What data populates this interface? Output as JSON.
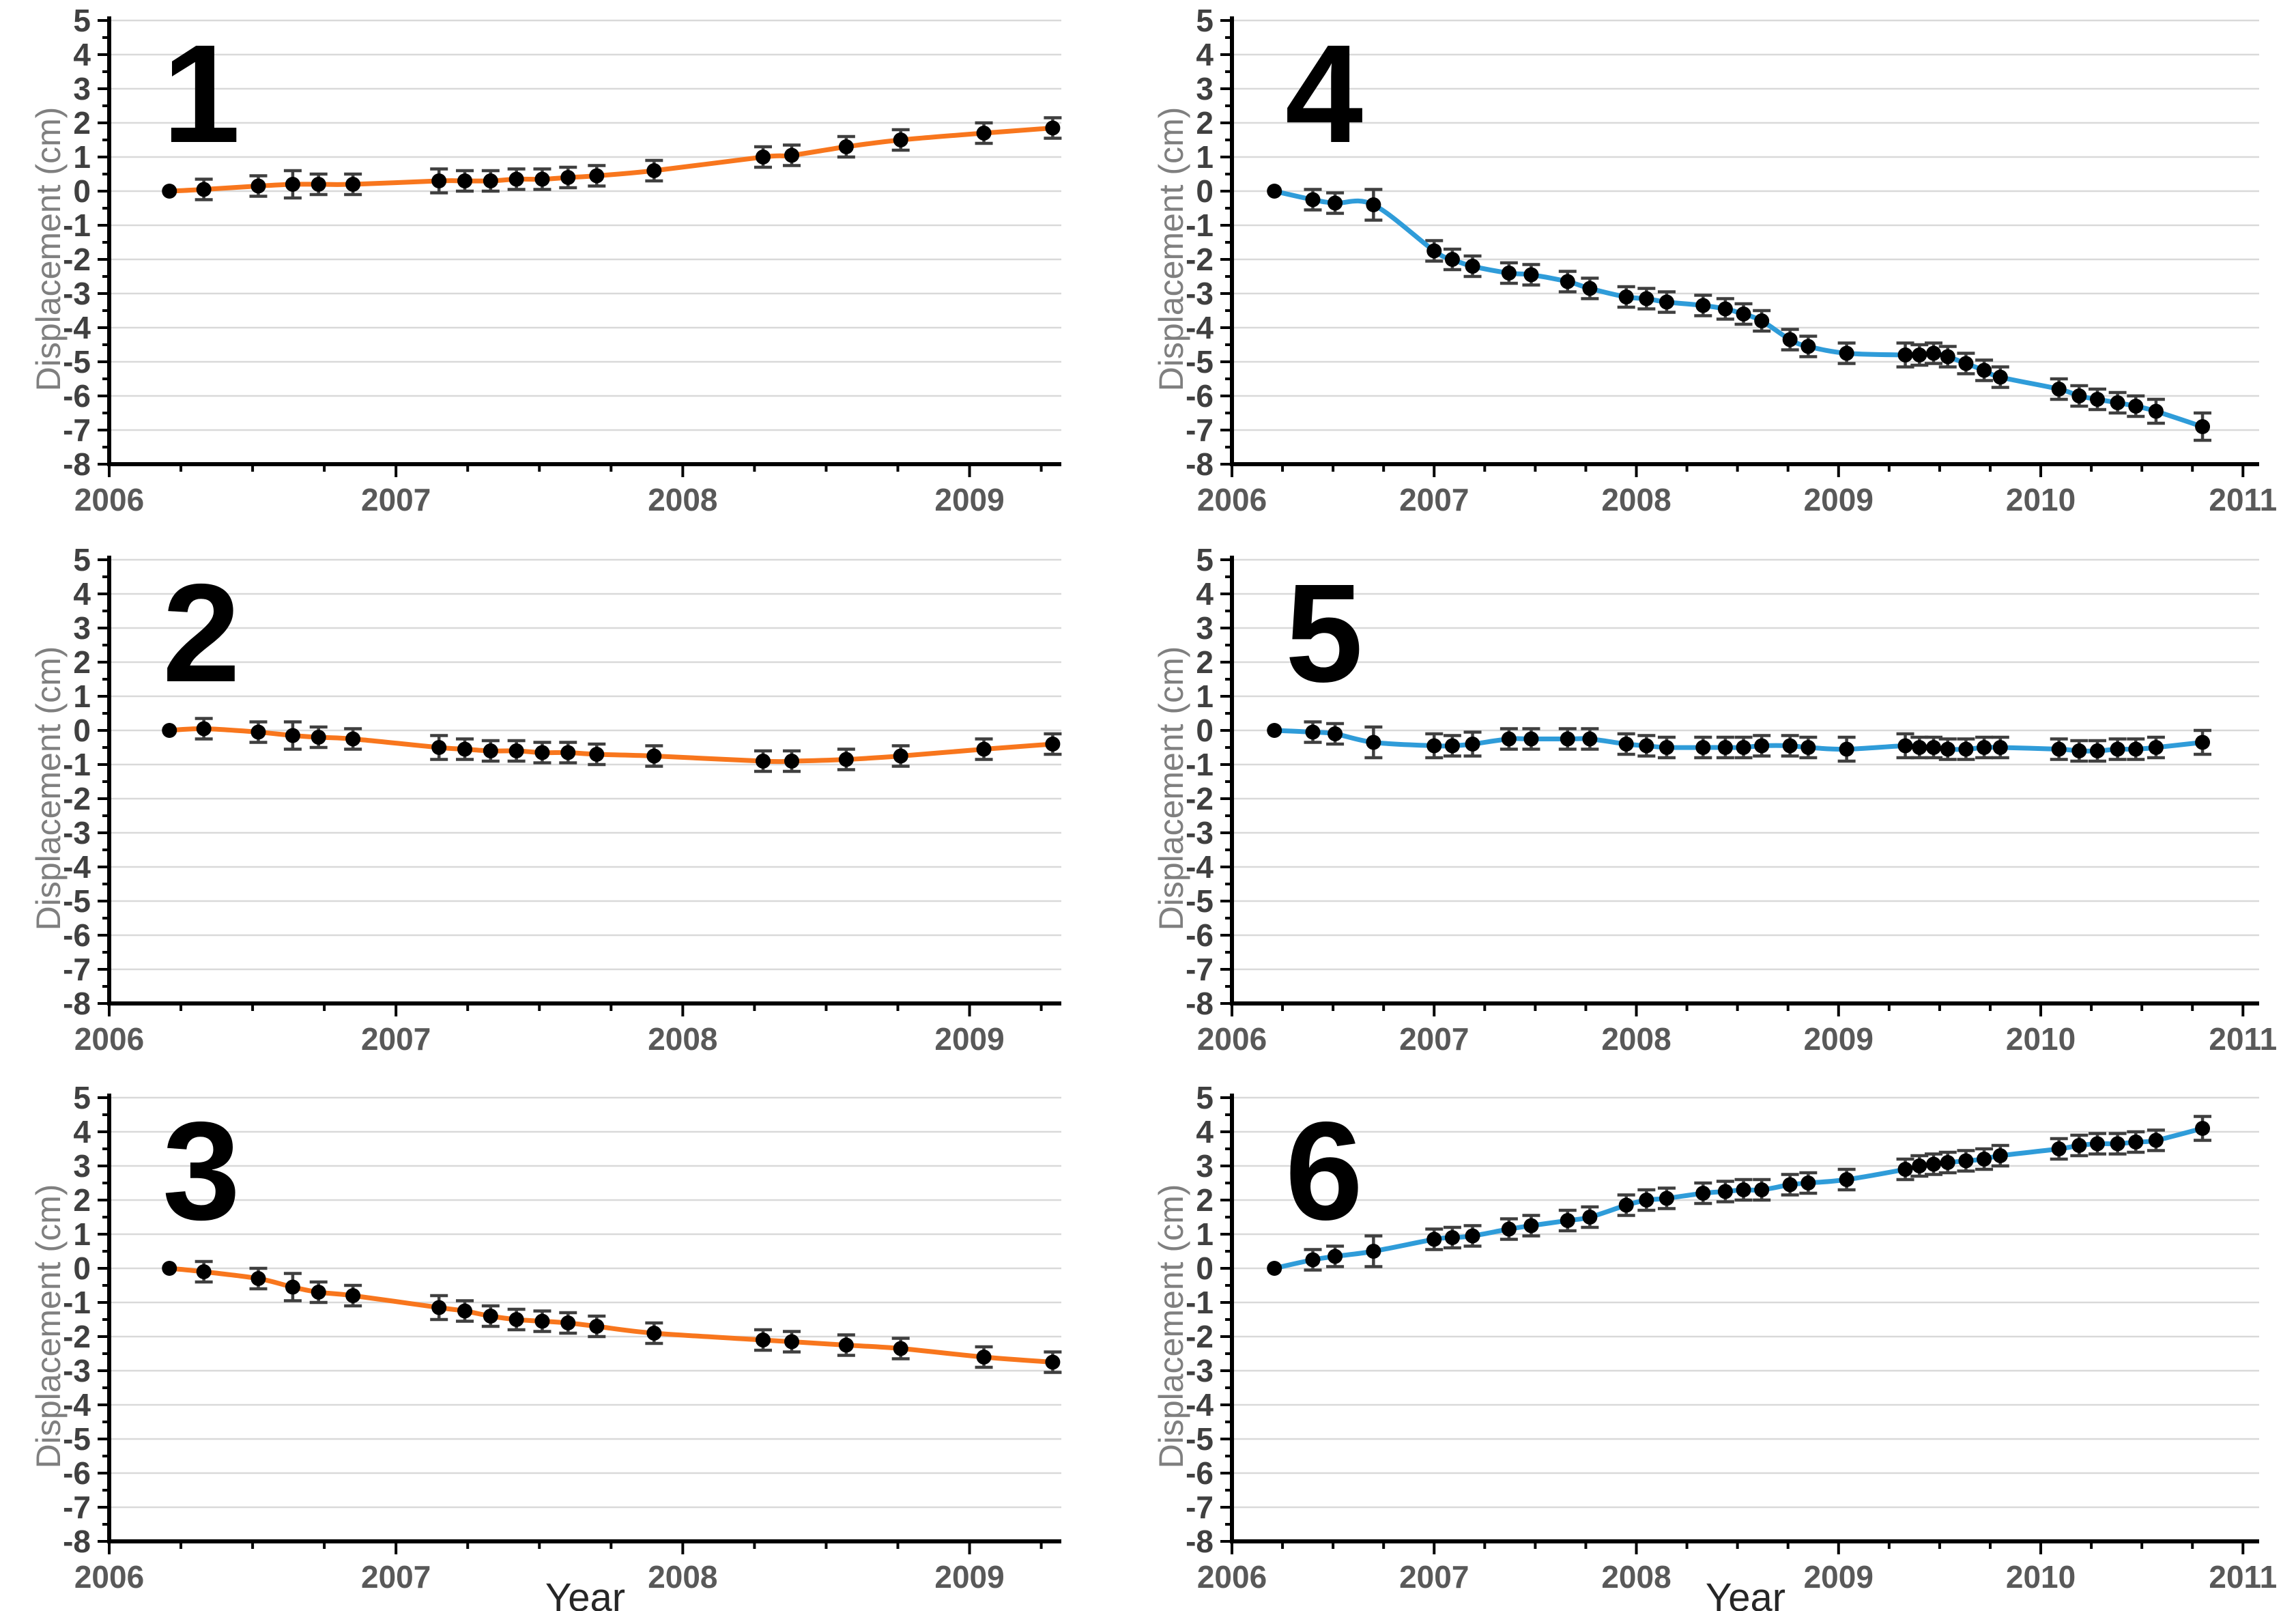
{
  "figure": {
    "xlabel": "Year",
    "ylabel": "Displacement (cm)",
    "y_ticks": [
      5,
      4,
      3,
      2,
      1,
      0,
      -1,
      -2,
      -3,
      -4,
      -5,
      -6,
      -7,
      -8
    ],
    "colors": {
      "orange_series": "#F8761D",
      "blue_series": "#2F9CD9",
      "marker": "#000000",
      "error_bar": "#3F3F3F",
      "gridline": "#D9D9D9",
      "axis": "#000000",
      "tick_label": "#404040",
      "year_label": "#595959",
      "axis_title": "#7F7F7F",
      "xlabel_color": "#262626"
    }
  },
  "chart_data": [
    {
      "number": "1",
      "type": "line",
      "column": "left",
      "series_color": "#F8761D",
      "title": "1",
      "ylabel": "Displacement (cm)",
      "show_xlabel": false,
      "ylim": [
        -8,
        5
      ],
      "xlim": [
        2006,
        2009.32
      ],
      "x_ticks": [
        2006,
        2007,
        2008,
        2009
      ],
      "x": [
        2006.21,
        2006.33,
        2006.52,
        2006.64,
        2006.73,
        2006.85,
        2007.15,
        2007.24,
        2007.33,
        2007.42,
        2007.51,
        2007.6,
        2007.7,
        2007.9,
        2008.28,
        2008.38,
        2008.57,
        2008.76,
        2009.05,
        2009.29
      ],
      "y": [
        0,
        0.05,
        0.15,
        0.2,
        0.2,
        0.2,
        0.3,
        0.3,
        0.3,
        0.35,
        0.35,
        0.4,
        0.45,
        0.6,
        1.0,
        1.05,
        1.3,
        1.5,
        1.7,
        1.85
      ],
      "err": [
        0,
        0.3,
        0.3,
        0.4,
        0.3,
        0.3,
        0.35,
        0.3,
        0.3,
        0.3,
        0.3,
        0.3,
        0.3,
        0.3,
        0.3,
        0.3,
        0.3,
        0.3,
        0.3,
        0.3
      ]
    },
    {
      "number": "2",
      "type": "line",
      "column": "left",
      "series_color": "#F8761D",
      "title": "2",
      "ylabel": "Displacement (cm)",
      "show_xlabel": false,
      "ylim": [
        -8,
        5
      ],
      "xlim": [
        2006,
        2009.32
      ],
      "x_ticks": [
        2006,
        2007,
        2008,
        2009
      ],
      "x": [
        2006.21,
        2006.33,
        2006.52,
        2006.64,
        2006.73,
        2006.85,
        2007.15,
        2007.24,
        2007.33,
        2007.42,
        2007.51,
        2007.6,
        2007.7,
        2007.9,
        2008.28,
        2008.38,
        2008.57,
        2008.76,
        2009.05,
        2009.29
      ],
      "y": [
        0,
        0.05,
        -0.05,
        -0.15,
        -0.2,
        -0.25,
        -0.5,
        -0.55,
        -0.6,
        -0.6,
        -0.65,
        -0.65,
        -0.7,
        -0.75,
        -0.9,
        -0.9,
        -0.85,
        -0.75,
        -0.55,
        -0.4
      ],
      "err": [
        0,
        0.3,
        0.3,
        0.4,
        0.3,
        0.3,
        0.35,
        0.3,
        0.3,
        0.3,
        0.3,
        0.3,
        0.3,
        0.3,
        0.3,
        0.3,
        0.3,
        0.3,
        0.3,
        0.3
      ]
    },
    {
      "number": "3",
      "type": "line",
      "column": "left",
      "series_color": "#F8761D",
      "title": "3",
      "ylabel": "Displacement (cm)",
      "show_xlabel": true,
      "ylim": [
        -8,
        5
      ],
      "xlim": [
        2006,
        2009.32
      ],
      "x_ticks": [
        2006,
        2007,
        2008,
        2009
      ],
      "x": [
        2006.21,
        2006.33,
        2006.52,
        2006.64,
        2006.73,
        2006.85,
        2007.15,
        2007.24,
        2007.33,
        2007.42,
        2007.51,
        2007.6,
        2007.7,
        2007.9,
        2008.28,
        2008.38,
        2008.57,
        2008.76,
        2009.05,
        2009.29
      ],
      "y": [
        0,
        -0.1,
        -0.3,
        -0.55,
        -0.7,
        -0.8,
        -1.15,
        -1.25,
        -1.4,
        -1.5,
        -1.55,
        -1.6,
        -1.7,
        -1.9,
        -2.1,
        -2.15,
        -2.25,
        -2.35,
        -2.6,
        -2.75
      ],
      "err": [
        0,
        0.3,
        0.3,
        0.4,
        0.3,
        0.3,
        0.35,
        0.3,
        0.3,
        0.3,
        0.3,
        0.3,
        0.3,
        0.3,
        0.3,
        0.3,
        0.3,
        0.3,
        0.3,
        0.3
      ]
    },
    {
      "number": "4",
      "type": "line",
      "column": "right",
      "series_color": "#2F9CD9",
      "title": "4",
      "ylabel": "Displacement (cm)",
      "show_xlabel": false,
      "ylim": [
        -8,
        5
      ],
      "xlim": [
        2006,
        2011.08
      ],
      "x_ticks": [
        2006,
        2007,
        2008,
        2009,
        2010,
        2011
      ],
      "x": [
        2006.21,
        2006.4,
        2006.51,
        2006.7,
        2007.0,
        2007.09,
        2007.19,
        2007.37,
        2007.48,
        2007.66,
        2007.77,
        2007.95,
        2008.05,
        2008.15,
        2008.33,
        2008.44,
        2008.53,
        2008.62,
        2008.76,
        2008.85,
        2009.04,
        2009.33,
        2009.4,
        2009.47,
        2009.54,
        2009.63,
        2009.72,
        2009.8,
        2010.09,
        2010.19,
        2010.28,
        2010.38,
        2010.47,
        2010.57,
        2010.8
      ],
      "y": [
        0,
        -0.25,
        -0.35,
        -0.4,
        -1.75,
        -2.0,
        -2.2,
        -2.4,
        -2.45,
        -2.65,
        -2.85,
        -3.1,
        -3.15,
        -3.25,
        -3.35,
        -3.45,
        -3.6,
        -3.8,
        -4.35,
        -4.55,
        -4.75,
        -4.8,
        -4.8,
        -4.75,
        -4.85,
        -5.05,
        -5.25,
        -5.45,
        -5.8,
        -6.0,
        -6.1,
        -6.2,
        -6.3,
        -6.45,
        -6.9
      ],
      "err": [
        0,
        0.3,
        0.3,
        0.45,
        0.3,
        0.3,
        0.3,
        0.3,
        0.3,
        0.3,
        0.3,
        0.3,
        0.3,
        0.3,
        0.3,
        0.3,
        0.3,
        0.3,
        0.3,
        0.3,
        0.3,
        0.35,
        0.3,
        0.3,
        0.3,
        0.3,
        0.3,
        0.3,
        0.3,
        0.3,
        0.3,
        0.3,
        0.3,
        0.35,
        0.4
      ]
    },
    {
      "number": "5",
      "type": "line",
      "column": "right",
      "series_color": "#2F9CD9",
      "title": "5",
      "ylabel": "Displacement (cm)",
      "show_xlabel": false,
      "ylim": [
        -8,
        5
      ],
      "xlim": [
        2006,
        2011.08
      ],
      "x_ticks": [
        2006,
        2007,
        2008,
        2009,
        2010,
        2011
      ],
      "x": [
        2006.21,
        2006.4,
        2006.51,
        2006.7,
        2007.0,
        2007.09,
        2007.19,
        2007.37,
        2007.48,
        2007.66,
        2007.77,
        2007.95,
        2008.05,
        2008.15,
        2008.33,
        2008.44,
        2008.53,
        2008.62,
        2008.76,
        2008.85,
        2009.04,
        2009.33,
        2009.4,
        2009.47,
        2009.54,
        2009.63,
        2009.72,
        2009.8,
        2010.09,
        2010.19,
        2010.28,
        2010.38,
        2010.47,
        2010.57,
        2010.8
      ],
      "y": [
        0,
        -0.05,
        -0.1,
        -0.35,
        -0.45,
        -0.45,
        -0.4,
        -0.25,
        -0.25,
        -0.25,
        -0.25,
        -0.4,
        -0.45,
        -0.5,
        -0.5,
        -0.5,
        -0.5,
        -0.45,
        -0.45,
        -0.5,
        -0.55,
        -0.45,
        -0.5,
        -0.5,
        -0.55,
        -0.55,
        -0.5,
        -0.5,
        -0.55,
        -0.6,
        -0.6,
        -0.55,
        -0.55,
        -0.5,
        -0.35
      ],
      "err": [
        0,
        0.3,
        0.3,
        0.45,
        0.35,
        0.3,
        0.35,
        0.3,
        0.3,
        0.3,
        0.3,
        0.3,
        0.3,
        0.3,
        0.3,
        0.3,
        0.3,
        0.3,
        0.3,
        0.3,
        0.35,
        0.35,
        0.3,
        0.3,
        0.3,
        0.3,
        0.3,
        0.3,
        0.3,
        0.3,
        0.3,
        0.3,
        0.3,
        0.3,
        0.35
      ]
    },
    {
      "number": "6",
      "type": "line",
      "column": "right",
      "series_color": "#2F9CD9",
      "title": "6",
      "ylabel": "Displacement (cm)",
      "show_xlabel": true,
      "ylim": [
        -8,
        5
      ],
      "xlim": [
        2006,
        2011.08
      ],
      "x_ticks": [
        2006,
        2007,
        2008,
        2009,
        2010,
        2011
      ],
      "x": [
        2006.21,
        2006.4,
        2006.51,
        2006.7,
        2007.0,
        2007.09,
        2007.19,
        2007.37,
        2007.48,
        2007.66,
        2007.77,
        2007.95,
        2008.05,
        2008.15,
        2008.33,
        2008.44,
        2008.53,
        2008.62,
        2008.76,
        2008.85,
        2009.04,
        2009.33,
        2009.4,
        2009.47,
        2009.54,
        2009.63,
        2009.72,
        2009.8,
        2010.09,
        2010.19,
        2010.28,
        2010.38,
        2010.47,
        2010.57,
        2010.8
      ],
      "y": [
        0,
        0.25,
        0.35,
        0.5,
        0.85,
        0.9,
        0.95,
        1.15,
        1.25,
        1.4,
        1.5,
        1.85,
        2.0,
        2.05,
        2.2,
        2.25,
        2.3,
        2.3,
        2.45,
        2.5,
        2.6,
        2.9,
        3.0,
        3.05,
        3.1,
        3.15,
        3.2,
        3.3,
        3.5,
        3.6,
        3.65,
        3.65,
        3.7,
        3.75,
        4.1
      ],
      "err": [
        0,
        0.3,
        0.3,
        0.45,
        0.3,
        0.3,
        0.3,
        0.3,
        0.3,
        0.3,
        0.3,
        0.3,
        0.3,
        0.3,
        0.3,
        0.3,
        0.3,
        0.3,
        0.3,
        0.3,
        0.3,
        0.3,
        0.3,
        0.3,
        0.3,
        0.3,
        0.3,
        0.3,
        0.3,
        0.3,
        0.3,
        0.3,
        0.3,
        0.3,
        0.35
      ]
    }
  ]
}
